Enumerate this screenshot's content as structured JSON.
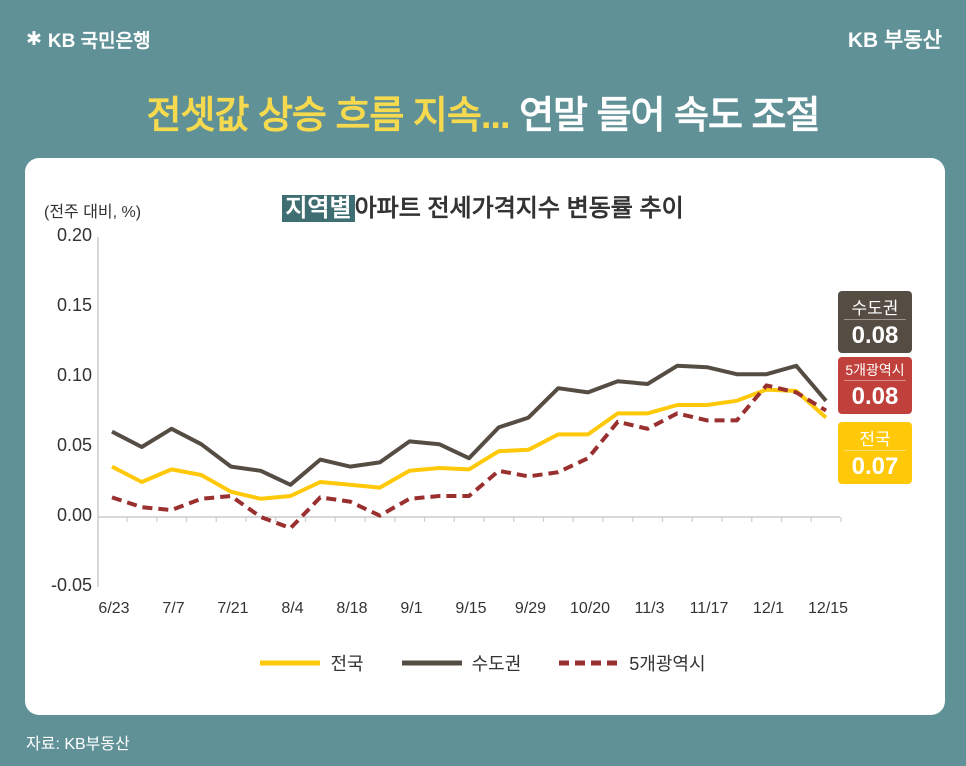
{
  "header": {
    "logo_left": "KB 국민은행",
    "logo_right": "KB 부동산",
    "headline_yellow": "전셋값 상승 흐름 지속...",
    "headline_white": "연말 들어 속도 조절"
  },
  "footer": {
    "source": "자료: KB부동산"
  },
  "chart_data": {
    "type": "line",
    "title_highlight": "지역별",
    "title": "아파트 전세가격지수 변동률 추이",
    "ylabel": "(전주 대비, %)",
    "ylim": [
      -0.05,
      0.2
    ],
    "yticks": [
      "0.20",
      "0.15",
      "0.10",
      "0.05",
      "0.00",
      "-0.05"
    ],
    "xtick_labels": [
      "6/23",
      "7/7",
      "7/21",
      "8/4",
      "8/18",
      "9/1",
      "9/15",
      "9/29",
      "10/20",
      "11/3",
      "11/17",
      "12/1",
      "12/15"
    ],
    "grid": false,
    "legend_placement": "bottom",
    "series": [
      {
        "name": "전국",
        "color": "#ffc90a",
        "style": "solid",
        "values": [
          0.036,
          0.025,
          0.034,
          0.03,
          0.018,
          0.013,
          0.015,
          0.025,
          0.023,
          0.021,
          0.033,
          0.035,
          0.034,
          0.047,
          0.048,
          0.059,
          0.059,
          0.074,
          0.074,
          0.08,
          0.08,
          0.083,
          0.091,
          0.09,
          0.071
        ]
      },
      {
        "name": "수도권",
        "color": "#554d43",
        "style": "solid",
        "values": [
          0.061,
          0.05,
          0.063,
          0.052,
          0.036,
          0.033,
          0.023,
          0.041,
          0.036,
          0.039,
          0.054,
          0.052,
          0.042,
          0.064,
          0.071,
          0.092,
          0.089,
          0.097,
          0.095,
          0.108,
          0.107,
          0.102,
          0.102,
          0.108,
          0.083
        ]
      },
      {
        "name": "5개광역시",
        "color": "#9a2f2f",
        "style": "dashed",
        "values": [
          0.014,
          0.007,
          0.005,
          0.013,
          0.015,
          0.0,
          -0.008,
          0.014,
          0.011,
          0.001,
          0.013,
          0.015,
          0.015,
          0.033,
          0.029,
          0.032,
          0.042,
          0.068,
          0.063,
          0.074,
          0.069,
          0.069,
          0.094,
          0.089,
          0.076
        ]
      }
    ],
    "end_labels": [
      {
        "name": "수도권",
        "value": "0.08",
        "color": "#554d43"
      },
      {
        "name": "5개광역시",
        "value": "0.08",
        "color": "#c0403c"
      },
      {
        "name": "전국",
        "value": "0.07",
        "color": "#ffc90a"
      }
    ]
  }
}
